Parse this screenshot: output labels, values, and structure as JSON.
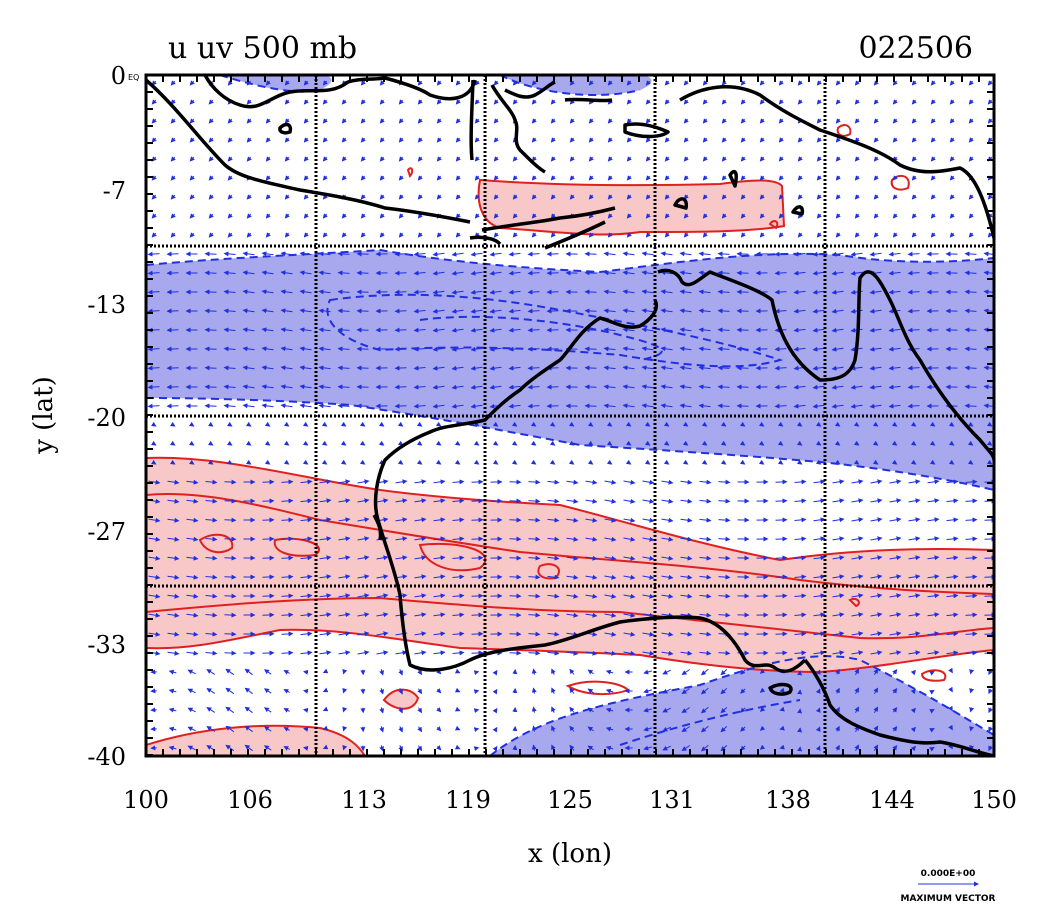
{
  "title_left": "u uv 500 mb",
  "title_right": "022506",
  "x_axis_label": "x (lon)",
  "y_axis_label": "y (lat)",
  "x_ticks": [
    "100",
    "106",
    "113",
    "119",
    "125",
    "131",
    "138",
    "144",
    "150"
  ],
  "y_ticks": [
    "0",
    "-7",
    "-13",
    "-20",
    "-27",
    "-33",
    "-40"
  ],
  "y_tick_suffix": "EQ",
  "reference_vector": {
    "value": "0.000E+00",
    "label": "MAXIMUM VECTOR"
  },
  "chart_data": {
    "type": "map",
    "variable": "u uv 500 mb",
    "xlim": [
      100,
      150
    ],
    "ylim": [
      -40,
      0
    ],
    "grid": true,
    "colors": {
      "positive_fill": "#f8c8c8",
      "positive_line": "#e02020",
      "negative_fill": "#a8a8ee",
      "negative_line": "#2030e0",
      "vectors": "#2030e0",
      "coast": "#000000"
    }
  }
}
